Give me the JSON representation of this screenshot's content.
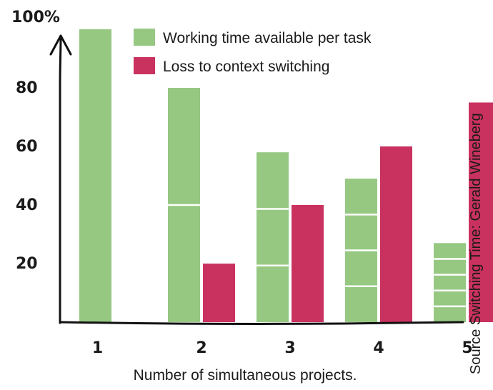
{
  "chart_data": {
    "type": "bar",
    "stacked_segments": true,
    "categories": [
      "1",
      "2",
      "3",
      "4",
      "5"
    ],
    "series": [
      {
        "name": "Working time available per task",
        "color": "#96c882",
        "values": [
          100,
          80,
          58,
          49,
          27
        ],
        "segments_per_bar": [
          1,
          2,
          3,
          4,
          5
        ]
      },
      {
        "name": "Loss to context switching",
        "color": "#c9325f",
        "values": [
          0,
          20,
          40,
          60,
          75
        ]
      }
    ],
    "title": "",
    "xlabel": "Number of simultaneous projects.",
    "ylabel": "",
    "ylim": [
      0,
      100
    ],
    "yticks": [
      {
        "value": 20,
        "label": "20"
      },
      {
        "value": 40,
        "label": "40"
      },
      {
        "value": 60,
        "label": "60"
      },
      {
        "value": 80,
        "label": "80"
      },
      {
        "value": 100,
        "label": "100%"
      }
    ],
    "legend_position": "top-right",
    "source": "Source Switching Time: Gerald Wineberg",
    "grid": false
  }
}
